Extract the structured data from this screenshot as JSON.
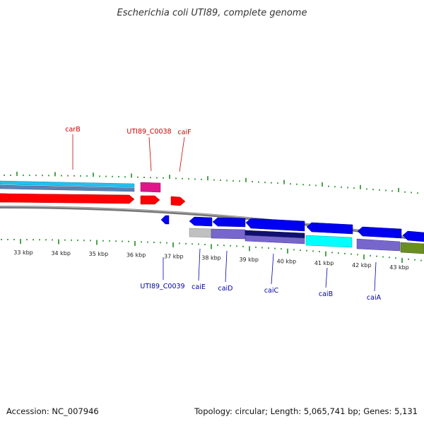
{
  "title": "Escherichia coli UTI89, complete genome",
  "footer": {
    "accession": "Accession: NC_007946",
    "stats": "Topology: circular; Length: 5,065,741 bp; Genes: 5,131"
  },
  "colors": {
    "forward_label": "#cc0000",
    "reverse_label": "#0000aa",
    "backbone": "#777777",
    "tick": "#228b22",
    "red_cds": "#ff0000",
    "blue_cds": "#0000ee",
    "cyan_track": "#22c0ee",
    "steel_track": "#5b82b5",
    "magenta_track": "#e0158a",
    "gray_track": "#c0c0c0",
    "purple_track": "#7766cc",
    "navy_track": "#101070",
    "aqua_track": "#00ffff",
    "olive_track": "#6b8e23"
  },
  "kbp_labels": [
    "33 kbp",
    "34 kbp",
    "35 kbp",
    "36 kbp",
    "37 kbp",
    "38 kbp",
    "39 kbp",
    "40 kbp",
    "41 kbp",
    "42 kbp",
    "43 kbp"
  ],
  "forward_genes": [
    "carB",
    "UTI89_C0038",
    "caiF"
  ],
  "reverse_genes": [
    "UTI89_C0039",
    "caiE",
    "caiD",
    "caiC",
    "caiB",
    "caiA"
  ]
}
